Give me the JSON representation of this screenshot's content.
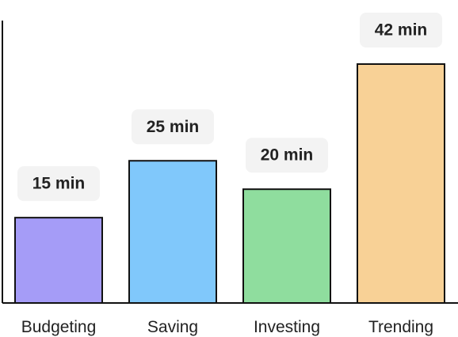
{
  "chart_data": {
    "type": "bar",
    "categories": [
      "Budgeting",
      "Saving",
      "Investing",
      "Trending"
    ],
    "values": [
      15,
      25,
      20,
      42
    ],
    "value_labels": [
      "15 min",
      "25 min",
      "20 min",
      "42 min"
    ],
    "colors": [
      "#a59cf7",
      "#80c8fb",
      "#8fdd9e",
      "#f8d196"
    ],
    "title": "",
    "xlabel": "",
    "ylabel": "",
    "ylim": [
      0,
      42
    ],
    "grid": false,
    "legend": "none"
  }
}
